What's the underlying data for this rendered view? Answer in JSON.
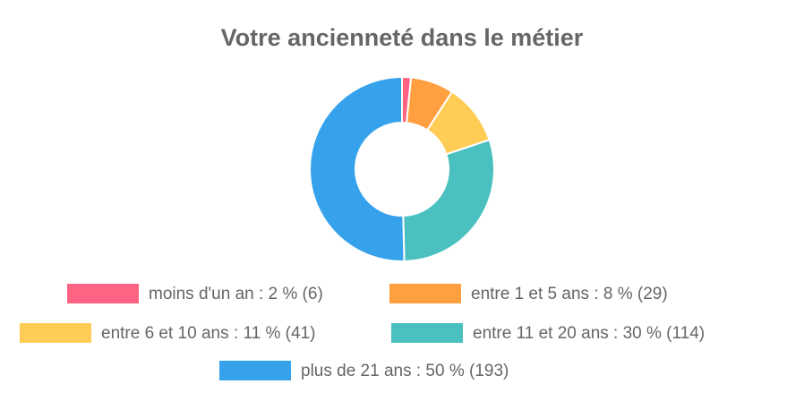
{
  "chart_data": {
    "type": "doughnut",
    "title": "Votre ancienneté dans le métier",
    "categories": [
      "moins d'un an : 2 % (6)",
      "entre 1 et 5 ans : 8 % (29)",
      "entre 6 et 10 ans : 11 % (41)",
      "entre 11 et 20 ans : 30 % (114)",
      "plus de 21 ans : 50 % (193)"
    ],
    "values": [
      6,
      29,
      41,
      114,
      193
    ],
    "colors": [
      "#ff6384",
      "#ff9f40",
      "#ffcd56",
      "#4bc0c0",
      "#36a2eb"
    ],
    "legend": "bottom"
  }
}
